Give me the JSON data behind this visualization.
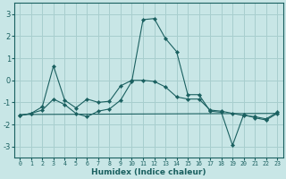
{
  "xlabel": "Humidex (Indice chaleur)",
  "background_color": "#c8e6e6",
  "grid_color": "#a8cece",
  "line_color": "#1a6060",
  "xlim": [
    -0.5,
    23.5
  ],
  "ylim": [
    -3.5,
    3.5
  ],
  "yticks": [
    -3,
    -2,
    -1,
    0,
    1,
    2,
    3
  ],
  "xticks": [
    0,
    1,
    2,
    3,
    4,
    5,
    6,
    7,
    8,
    9,
    10,
    11,
    12,
    13,
    14,
    15,
    16,
    17,
    18,
    19,
    20,
    21,
    22,
    23
  ],
  "lines": [
    {
      "x": [
        0,
        1,
        2,
        3,
        4,
        5,
        6,
        7,
        8,
        9,
        10,
        11,
        12,
        13,
        14,
        15,
        16,
        17,
        18,
        19,
        20,
        21,
        22,
        23
      ],
      "y": [
        -1.6,
        -1.5,
        -1.35,
        -0.85,
        -1.1,
        -1.5,
        -1.65,
        -1.4,
        -1.3,
        -0.9,
        -0.05,
        2.75,
        2.8,
        1.9,
        1.3,
        -0.65,
        -0.65,
        -1.4,
        -1.45,
        -2.95,
        -1.55,
        -1.7,
        -1.8,
        -1.5
      ],
      "marker": true
    },
    {
      "x": [
        0,
        1,
        2,
        3,
        4,
        5,
        6,
        7,
        8,
        9,
        10,
        11,
        12,
        13,
        14,
        15,
        16,
        17,
        18,
        19,
        20,
        21,
        22,
        23
      ],
      "y": [
        -1.6,
        -1.5,
        -1.2,
        0.65,
        -0.9,
        -1.25,
        -0.85,
        -1.0,
        -0.95,
        -0.25,
        0.0,
        0.0,
        -0.05,
        -0.3,
        -0.75,
        -0.85,
        -0.85,
        -1.35,
        -1.4,
        -1.5,
        -1.6,
        -1.65,
        -1.75,
        -1.45
      ],
      "marker": true
    },
    {
      "x": [
        0,
        23
      ],
      "y": [
        -1.55,
        -1.5
      ],
      "marker": false
    }
  ]
}
